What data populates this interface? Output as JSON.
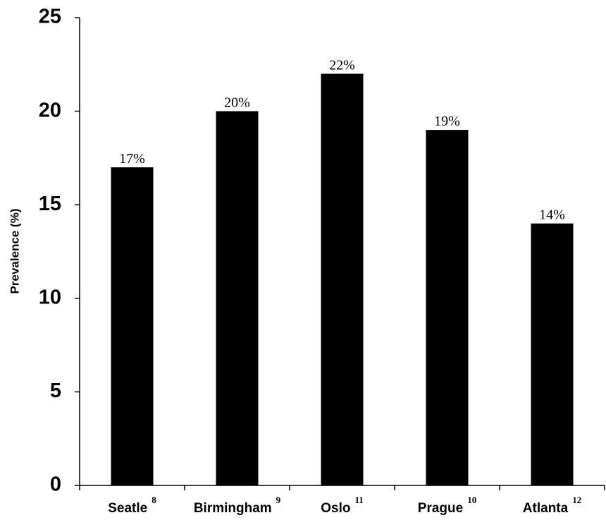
{
  "chart_data": {
    "type": "bar",
    "y_label": "Prevalence (%)",
    "categories": [
      "Seatle",
      "Birmingham",
      "Oslo",
      "Prague",
      "Atlanta"
    ],
    "category_notes": [
      "8",
      "9",
      "11",
      "10",
      "12"
    ],
    "values": [
      17,
      20,
      22,
      19,
      14
    ],
    "value_labels": [
      "17%",
      "20%",
      "22%",
      "19%",
      "14%"
    ],
    "color": "#000000",
    "ylim": [
      0,
      25
    ],
    "yticks": [
      0,
      5,
      10,
      15,
      20,
      25
    ],
    "grid": false
  }
}
